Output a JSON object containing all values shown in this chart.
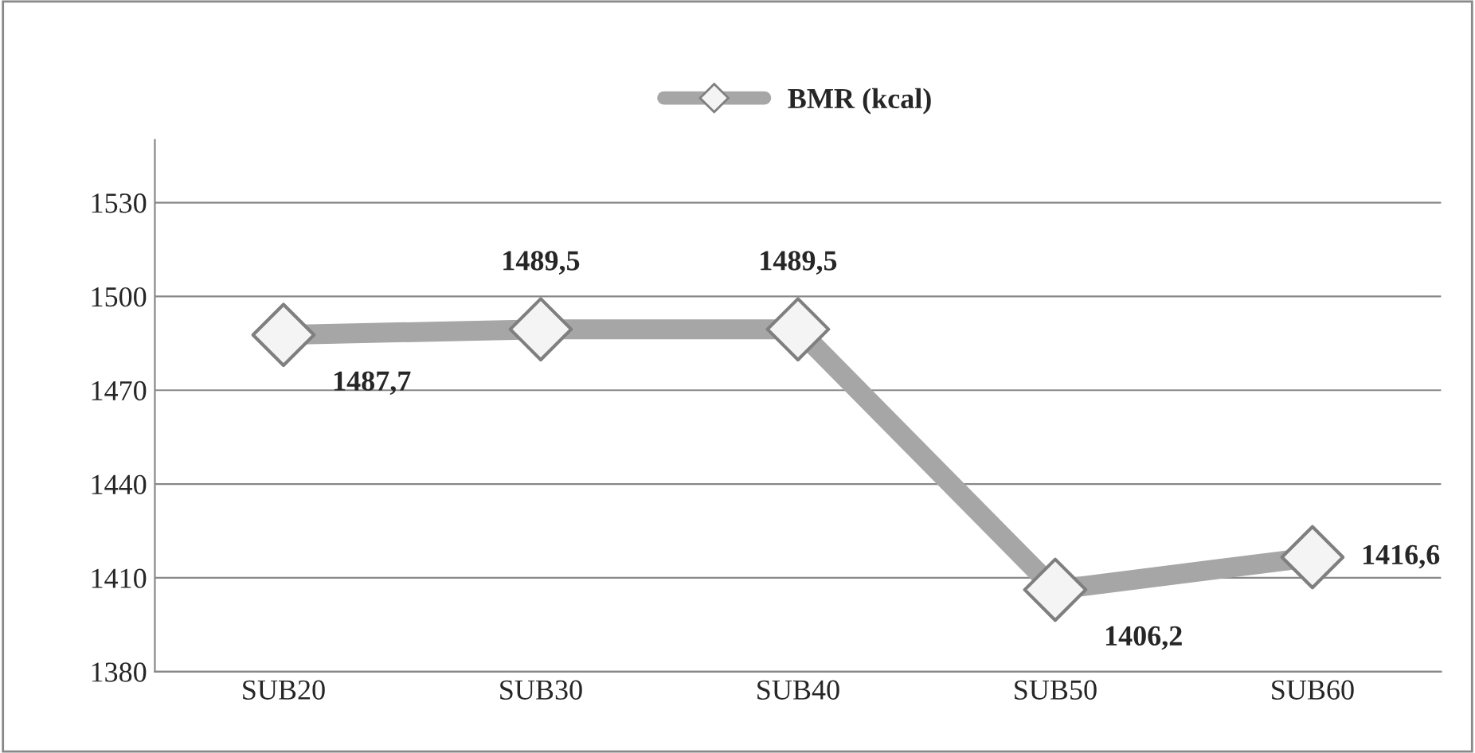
{
  "chart_data": {
    "type": "line",
    "categories": [
      "SUB20",
      "SUB30",
      "SUB40",
      "SUB50",
      "SUB60"
    ],
    "series": [
      {
        "name": "BMR (kcal)",
        "color": "#a6a6a6",
        "values": [
          1487.7,
          1489.5,
          1489.5,
          1406.2,
          1416.6
        ],
        "value_labels": [
          "1487,7",
          "1489,5",
          "1489,5",
          "1406,2",
          "1416,6"
        ]
      }
    ],
    "ylim": [
      1380,
      1550
    ],
    "yticks": [
      1380,
      1410,
      1440,
      1470,
      1500,
      1530
    ],
    "grid": "y",
    "legend": "top",
    "marker": "diamond",
    "line_style": "solid"
  }
}
